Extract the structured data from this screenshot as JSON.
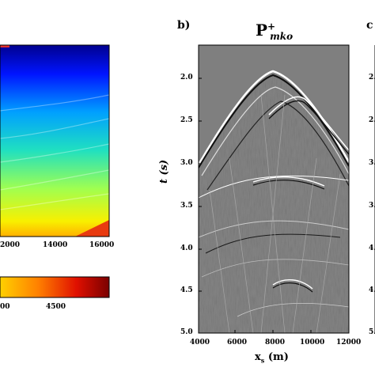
{
  "panels": {
    "a": {
      "x_ticks": [
        "2000",
        "14000",
        "16000"
      ],
      "colorbar_ticks": [
        "00",
        "4500"
      ]
    },
    "b": {
      "label": "b)",
      "title_main": "P",
      "title_sup": "+",
      "title_sub": "mko",
      "ylabel": "t (s)",
      "xlabel_main": "x",
      "xlabel_sub": "s",
      "xlabel_unit": "(m)",
      "y_ticks": [
        "2.0",
        "2.5",
        "3.0",
        "3.5",
        "4.0",
        "4.5",
        "5.0"
      ],
      "x_ticks": [
        "4000",
        "6000",
        "8000",
        "10000",
        "12000"
      ]
    },
    "c": {
      "label": "c",
      "partial_ticks": [
        "2.",
        "2.",
        "3.",
        "3.",
        "4.",
        "4.",
        "5."
      ]
    }
  },
  "colors": {
    "seismic_background": "#8a8a8a",
    "upper_region": "#7f7f7f"
  }
}
